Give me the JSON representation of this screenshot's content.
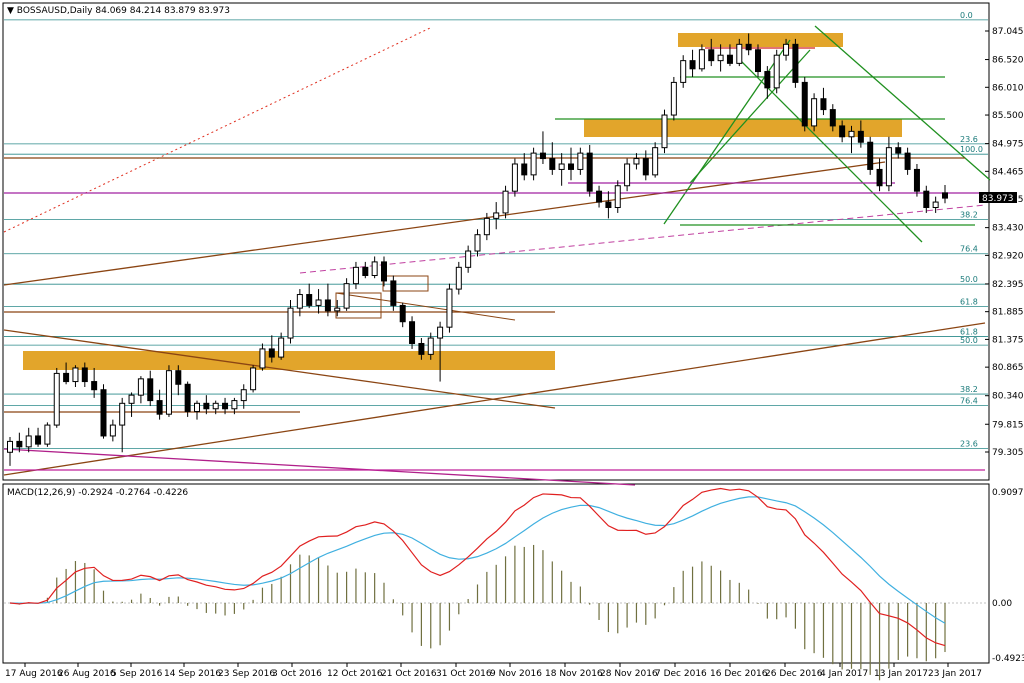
{
  "chart_data": [
    {
      "type": "candlestick",
      "header": {
        "symbol": "BOSSAUSD,Daily",
        "ohlc": "84.069 84.214 83.879 83.973"
      },
      "current_price_label": "83.973",
      "y_ticks": [
        "87.045",
        "86.520",
        "86.010",
        "85.500",
        "84.975",
        "84.465",
        "83.955",
        "83.430",
        "82.920",
        "82.395",
        "81.885",
        "81.375",
        "80.865",
        "80.340",
        "79.815",
        "79.305"
      ],
      "x_ticks": [
        "17 Aug 2016",
        "26 Aug 2016",
        "5 Sep 2016",
        "14 Sep 2016",
        "23 Sep 2016",
        "3 Oct 2016",
        "12 Oct 2016",
        "21 Oct 2016",
        "31 Oct 2016",
        "9 Nov 2016",
        "18 Nov 2016",
        "28 Nov 2016",
        "7 Dec 2016",
        "16 Dec 2016",
        "26 Dec 2016",
        "4 Jan 2017",
        "13 Jan 2017",
        "23 Jan 2017"
      ],
      "fib_labels": [
        {
          "text": "0.0",
          "price": 87.25
        },
        {
          "text": "23.6",
          "price": 84.97
        },
        {
          "text": "100.0",
          "price": 84.78
        },
        {
          "text": "38.2",
          "price": 83.58
        },
        {
          "text": "76.4",
          "price": 82.95
        },
        {
          "text": "50.0",
          "price": 82.39
        },
        {
          "text": "61.8",
          "price": 81.98
        },
        {
          "text": "61.8",
          "price": 81.43
        },
        {
          "text": "50.0",
          "price": 81.27
        },
        {
          "text": "38.2",
          "price": 80.37
        },
        {
          "text": "76.4",
          "price": 80.16
        },
        {
          "text": "23.6",
          "price": 79.37
        }
      ],
      "candles": [
        [
          79.3,
          79.58,
          79.05,
          79.5
        ],
        [
          79.5,
          79.66,
          79.3,
          79.4
        ],
        [
          79.4,
          79.75,
          79.3,
          79.6
        ],
        [
          79.6,
          79.75,
          79.4,
          79.45
        ],
        [
          79.45,
          79.85,
          79.4,
          79.8
        ],
        [
          79.8,
          80.85,
          79.75,
          80.75
        ],
        [
          80.75,
          80.95,
          80.55,
          80.6
        ],
        [
          80.6,
          80.9,
          80.5,
          80.85
        ],
        [
          80.85,
          80.95,
          80.5,
          80.6
        ],
        [
          80.6,
          80.85,
          80.3,
          80.45
        ],
        [
          80.45,
          80.55,
          79.55,
          79.6
        ],
        [
          79.6,
          79.9,
          79.5,
          79.8
        ],
        [
          79.8,
          80.3,
          79.3,
          80.2
        ],
        [
          80.2,
          80.4,
          79.95,
          80.35
        ],
        [
          80.35,
          80.7,
          80.2,
          80.65
        ],
        [
          80.65,
          80.8,
          80.15,
          80.25
        ],
        [
          80.25,
          80.45,
          79.9,
          80.0
        ],
        [
          80.0,
          80.9,
          79.95,
          80.8
        ],
        [
          80.8,
          80.9,
          80.35,
          80.55
        ],
        [
          80.55,
          80.6,
          79.95,
          80.05
        ],
        [
          80.05,
          80.25,
          79.9,
          80.2
        ],
        [
          80.2,
          80.35,
          80.0,
          80.1
        ],
        [
          80.1,
          80.25,
          80.0,
          80.2
        ],
        [
          80.2,
          80.3,
          80.0,
          80.1
        ],
        [
          80.1,
          80.3,
          80.0,
          80.25
        ],
        [
          80.25,
          80.55,
          80.1,
          80.45
        ],
        [
          80.45,
          80.9,
          80.4,
          80.85
        ],
        [
          80.85,
          81.3,
          80.8,
          81.2
        ],
        [
          81.2,
          81.45,
          80.95,
          81.05
        ],
        [
          81.05,
          81.5,
          81.0,
          81.4
        ],
        [
          81.4,
          82.1,
          81.3,
          81.95
        ],
        [
          81.95,
          82.3,
          81.8,
          82.2
        ],
        [
          82.2,
          82.4,
          81.95,
          82.0
        ],
        [
          82.0,
          82.3,
          81.85,
          82.1
        ],
        [
          82.1,
          82.4,
          81.8,
          81.9
        ],
        [
          81.9,
          82.1,
          81.8,
          81.95
        ],
        [
          81.95,
          82.5,
          81.9,
          82.4
        ],
        [
          82.4,
          82.8,
          82.3,
          82.7
        ],
        [
          82.7,
          82.8,
          82.5,
          82.55
        ],
        [
          82.55,
          82.9,
          82.5,
          82.8
        ],
        [
          82.8,
          82.9,
          82.35,
          82.45
        ],
        [
          82.45,
          82.55,
          81.9,
          82.0
        ],
        [
          82.0,
          82.05,
          81.6,
          81.7
        ],
        [
          81.7,
          81.8,
          81.2,
          81.3
        ],
        [
          81.3,
          81.4,
          81.0,
          81.1
        ],
        [
          81.1,
          81.5,
          81.0,
          81.4
        ],
        [
          81.4,
          81.7,
          80.6,
          81.6
        ],
        [
          81.6,
          82.4,
          81.5,
          82.3
        ],
        [
          82.3,
          82.8,
          82.2,
          82.7
        ],
        [
          82.7,
          83.1,
          82.6,
          83.0
        ],
        [
          83.0,
          83.4,
          82.9,
          83.3
        ],
        [
          83.3,
          83.7,
          83.2,
          83.6
        ],
        [
          83.6,
          83.9,
          83.4,
          83.7
        ],
        [
          83.7,
          84.2,
          83.6,
          84.1
        ],
        [
          84.1,
          84.7,
          84.0,
          84.6
        ],
        [
          84.6,
          84.8,
          84.3,
          84.4
        ],
        [
          84.4,
          84.9,
          84.3,
          84.8
        ],
        [
          84.8,
          85.2,
          84.6,
          84.7
        ],
        [
          84.7,
          85.0,
          84.4,
          84.5
        ],
        [
          84.5,
          84.8,
          84.2,
          84.6
        ],
        [
          84.6,
          84.9,
          84.3,
          84.5
        ],
        [
          84.5,
          84.9,
          84.4,
          84.8
        ],
        [
          84.8,
          84.95,
          84.0,
          84.1
        ],
        [
          84.1,
          84.2,
          83.8,
          83.9
        ],
        [
          83.9,
          84.1,
          83.6,
          83.8
        ],
        [
          83.8,
          84.3,
          83.7,
          84.2
        ],
        [
          84.2,
          84.7,
          84.1,
          84.6
        ],
        [
          84.6,
          84.8,
          84.5,
          84.7
        ],
        [
          84.7,
          84.85,
          84.3,
          84.4
        ],
        [
          84.4,
          85.0,
          84.35,
          84.9
        ],
        [
          84.9,
          85.6,
          84.8,
          85.5
        ],
        [
          85.5,
          86.2,
          85.4,
          86.1
        ],
        [
          86.1,
          86.6,
          86.0,
          86.5
        ],
        [
          86.5,
          86.7,
          86.2,
          86.35
        ],
        [
          86.35,
          86.8,
          86.3,
          86.7
        ],
        [
          86.7,
          86.9,
          86.4,
          86.5
        ],
        [
          86.5,
          86.8,
          86.3,
          86.6
        ],
        [
          86.6,
          86.8,
          86.4,
          86.45
        ],
        [
          86.45,
          86.9,
          86.4,
          86.8
        ],
        [
          86.8,
          87.0,
          86.6,
          86.7
        ],
        [
          86.7,
          86.8,
          86.2,
          86.3
        ],
        [
          86.3,
          86.4,
          85.8,
          86.0
        ],
        [
          86.0,
          86.7,
          85.9,
          86.6
        ],
        [
          86.6,
          86.9,
          86.5,
          86.8
        ],
        [
          86.8,
          86.9,
          86.0,
          86.1
        ],
        [
          86.1,
          86.2,
          85.2,
          85.3
        ],
        [
          85.3,
          85.9,
          85.2,
          85.8
        ],
        [
          85.8,
          86.0,
          85.5,
          85.6
        ],
        [
          85.6,
          85.7,
          85.2,
          85.3
        ],
        [
          85.3,
          85.4,
          85.0,
          85.1
        ],
        [
          85.1,
          85.3,
          84.8,
          85.2
        ],
        [
          85.2,
          85.4,
          84.9,
          85.0
        ],
        [
          85.0,
          85.1,
          84.4,
          84.5
        ],
        [
          84.5,
          84.7,
          84.1,
          84.2
        ],
        [
          84.2,
          85.1,
          84.1,
          84.9
        ],
        [
          84.9,
          85.0,
          84.7,
          84.8
        ],
        [
          84.8,
          84.9,
          84.4,
          84.5
        ],
        [
          84.5,
          84.6,
          84.0,
          84.1
        ],
        [
          84.1,
          84.2,
          83.7,
          83.8
        ],
        [
          83.8,
          84.0,
          83.7,
          83.9
        ],
        [
          84.069,
          84.214,
          83.879,
          83.973
        ]
      ]
    },
    {
      "type": "line",
      "title": "MACD(12,26,9) -0.2924 -0.2764 -0.4226",
      "y_ticks": [
        "0.9097",
        "0.00",
        "-0.4923"
      ]
    }
  ]
}
